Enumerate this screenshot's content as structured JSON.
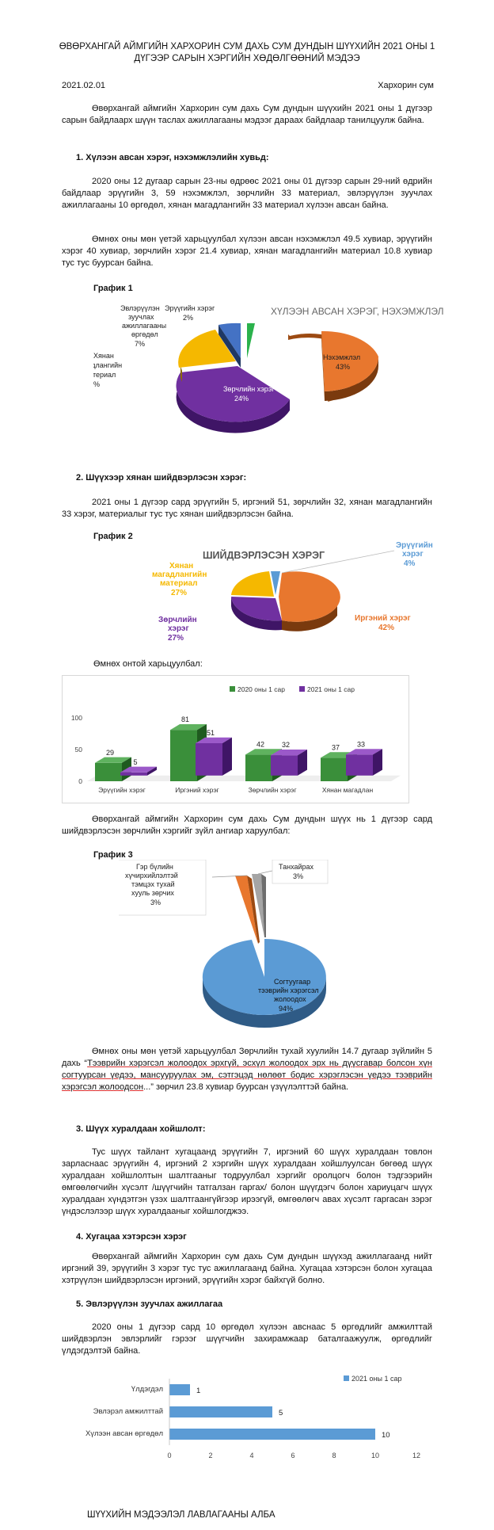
{
  "title": "ӨВӨРХАНГАЙ АЙМГИЙН ХАРХОРИН СУМ ДАХЬ СУМ ДУНДЫН ШҮҮХИЙН 2021 ОНЫ 1 ДҮГЭЭР САРЫН ХЭРГИЙН ХӨДӨЛГӨӨНИЙ МЭДЭЭ",
  "date": "2021.02.01",
  "place": "Хархорин сум",
  "intro": "Өвөрхангай аймгийн Хархорин сум дахь Сум дундын шүүхийн 2021 оны 1 дүгээр сарын байдлаарх шүүн таслах ажиллагааны мэдээг дараах байдлаар танилцуулж байна.",
  "s1": {
    "heading": "1. Хүлээн авсан хэрэг, нэхэмжлэлийн хувьд:",
    "p1": "2020 оны 12 дугаар сарын 23-ны өдрөөс 2021 оны 01 дүгээр сарын 29-ний өдрийн байдлаар эрүүгийн 3, 59 нэхэмжлэл, зөрчлийн 33 материал, эвлэрүүлэн зуучлах ажиллагааны 10 өргөдөл, хянан магадлангийн 33 материал хүлээн авсан байна.",
    "p2": "Өмнөх оны мөн үетэй харьцуулбал хүлээн авсан нэхэмжлэл 49.5 хувиар, эрүүгийн хэрэг 40 хувиар, зөрчлийн хэрэг 21.4 хувиар, хянан магадлангийн материал 10.8 хувиар тус тус буурсан байна.",
    "graph_label": "График 1"
  },
  "s2": {
    "heading": "2. Шүүхээр хянан шийдвэрлэсэн хэрэг:",
    "p1": "2021 оны 1 дүгээр сард эрүүгийн 5, иргэний 51, зөрчлийн 32, хянан магадлангийн 33 хэрэг, материалыг тус тус хянан шийдвэрлэсэн байна.",
    "graph_label": "График 2",
    "compare_label": "Өмнөх онтой харьцуулбал:",
    "p2": "Өвөрхангай аймгийн Хархорин сум дахь Сум дундын шүүх нь 1 дүгээр сард шийдвэрлэсэн зөрчлийн хэргийг зүйл ангиар харуулбал:",
    "graph3_label": "График 3",
    "p3_a": "Өмнөх оны мөн үетэй харьцуулбал Зөрчлийн тухай хуулийн 14.7 дугаар зүйлийн 5 дахь “",
    "p3_u": "Тээврийн хэрэгсэл жолоодох эрхгүй, эсхүл жолоодох эрх нь дүүсгавар болсон хүн согтуурсан үедээ, мансууруулах эм, сэтгэцэд нөлөөт бодис хэрэглэсэн үедээ тээврийн хэрэгсэл жолоодсон",
    "p3_b": "...” зөрчил 23.8 хувиар буурсан үзүүлэлттэй байна."
  },
  "s3": {
    "heading": "3. Шүүх хуралдаан хойшлолт:",
    "p1": "Тус шүүх тайлант хугацаанд эрүүгийн 7, иргэний 60 шүүх хуралдаан товлон зарласнаас эрүүгийн 4, иргэний 2 хэргийн шүүх хуралдаан хойшлуулсан бөгөөд шүүх хуралдаан хойшлолтын шалтгааныг тодруулбал хэргийг оролцогч болон тэдгээрийн өмгөөлөгчийн хүсэлт /шүүгчийн татгалзан гаргах/ болон шүүгдэгч болон хариуцагч шүүх хуралдаан хүндэтгэн үзэх шалтгаангүйгээр ирээгүй, өмгөөлөгч авах хүсэлт гаргасан зэрэг үндэслэлээр шүүх хуралдааныг хойшлогджээ."
  },
  "s4": {
    "heading": "4. Хугацаа хэтэрсэн хэрэг",
    "p1": "Өвөрхангай аймгийн Хархорин сум дахь Сум дундын шүүхэд ажиллагаанд нийт иргэний 39, эрүүгийн 3 хэрэг тус тус ажиллагаанд байна. Хугацаа хэтэрсэн болон хугацаа хэтрүүлэн шийдвэрлэсэн иргэний, эрүүгийн хэрэг байхгүй болно."
  },
  "s5": {
    "heading": "5. Эвлэрүүлэн зуучлах ажиллагаа",
    "p1": "2020 оны 1 дүгээр сард 10 өргөдөл хүлээн авснаас 5 өргөдлийг амжилттай шийдвэрлэн эвлэрлийг гэрээг шүүгчийн захирамжаар баталгаажуулж, өргөдлийг үлдэгдэлтэй байна."
  },
  "footer": "ШҮҮХИЙН МЭДЭЭЛЭЛ ЛАВЛАГААНЫ АЛБА",
  "chart_data": [
    {
      "type": "pie",
      "title": "ХҮЛЭЭН АВСАН ХЭРЭГ, НЭХЭМЖЛЭЛ",
      "slices": [
        {
          "label": "Нэхэмжлэл",
          "value": 43,
          "color": "#e8772e"
        },
        {
          "label": "Зөрчлийн хэрэг",
          "value": 24,
          "color": "#7030a0"
        },
        {
          "label": "Хянан магадлангийн материал",
          "value": 24,
          "color": "#f5b800"
        },
        {
          "label": "Эвлэрүүлэн зуучлах ажиллагааны өргөдөл",
          "value": 7,
          "color": "#4472c4"
        },
        {
          "label": "Эрүүгийн хэрэг",
          "value": 2,
          "color": "#2bb24c"
        }
      ]
    },
    {
      "type": "pie",
      "title": "ШИЙДВЭРЛЭСЭН ХЭРЭГ",
      "slices": [
        {
          "label": "Эрүүгийн хэрэг",
          "value": 4,
          "color": "#5b9bd5"
        },
        {
          "label": "Иргэний хэрэг",
          "value": 42,
          "color": "#e8772e"
        },
        {
          "label": "Зөрчлийн хэрэг",
          "value": 27,
          "color": "#7030a0"
        },
        {
          "label": "Хянан магадлангийн материал",
          "value": 27,
          "color": "#f5b800"
        }
      ]
    },
    {
      "type": "bar",
      "categories": [
        "Эрүүгийн хэрэг",
        "Иргэний хэрэг",
        "Зөрчлийн хэрэг",
        "Хянан магадлан"
      ],
      "series": [
        {
          "name": "2020 оны 1 сар",
          "values": [
            29,
            81,
            42,
            37
          ],
          "color": "#3a8f3a"
        },
        {
          "name": "2021 оны 1 сар",
          "values": [
            5,
            51,
            32,
            33
          ],
          "color": "#7030a0"
        }
      ],
      "yticks": [
        0,
        50,
        100
      ],
      "legend": "top-right"
    },
    {
      "type": "pie",
      "slices": [
        {
          "label": "Согтуугаар тээврийн хэрэгсэл жолоодох",
          "value": 94,
          "color": "#5b9bd5"
        },
        {
          "label": "Гэр бүлийн хүчирхийлэлтэй тэмцэх тухай хууль зөрчих",
          "value": 3,
          "color": "#e8772e"
        },
        {
          "label": "Танхайрах",
          "value": 3,
          "color": "#a5a5a5"
        }
      ]
    },
    {
      "type": "bar",
      "orientation": "horizontal",
      "categories": [
        "Үлдэгдэл",
        "Эвлэрэл амжилттай",
        "Хүлээн авсан өргөдөл"
      ],
      "series": [
        {
          "name": "2021 оны 1 сар",
          "values": [
            1,
            5,
            10
          ],
          "color": "#5b9bd5"
        }
      ],
      "xticks": [
        0,
        2,
        4,
        6,
        8,
        10,
        12
      ],
      "legend": "top-right"
    }
  ]
}
